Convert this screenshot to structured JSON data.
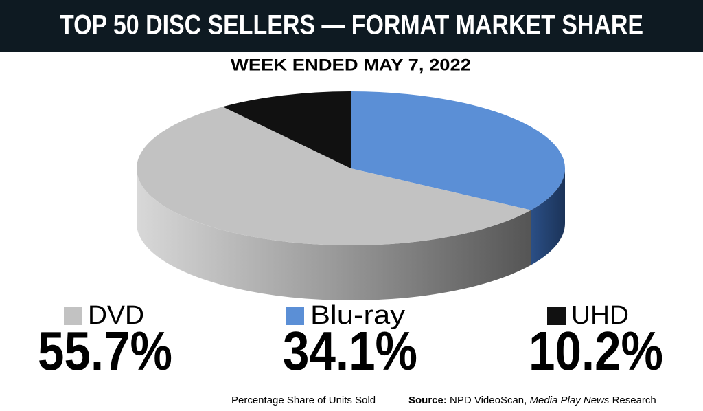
{
  "chart_data": {
    "type": "pie",
    "title": "TOP 50 DISC SELLERS — FORMAT MARKET SHARE",
    "subtitle": "WEEK ENDED MAY 7, 2022",
    "categories": [
      "DVD",
      "Blu-ray",
      "UHD"
    ],
    "values": [
      55.7,
      34.1,
      10.2
    ],
    "value_labels": [
      "55.7%",
      "34.1%",
      "10.2%"
    ],
    "colors": [
      "#c2c2c2",
      "#5b8fd6",
      "#111111"
    ],
    "footnote": "Percentage Share of Units Sold",
    "source": {
      "label": "Source:",
      "text": "NPD VideoScan,",
      "italic": "Media Play News",
      "end": "Research"
    }
  }
}
